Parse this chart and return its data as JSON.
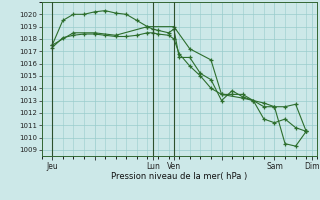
{
  "background_color": "#cce8e8",
  "grid_color": "#99cccc",
  "line_color": "#2d6e2d",
  "xlabel": "Pression niveau de la mer( hPa )",
  "ylim": [
    1008.5,
    1021.0
  ],
  "yticks": [
    1009,
    1010,
    1011,
    1012,
    1013,
    1014,
    1015,
    1016,
    1017,
    1018,
    1019,
    1020
  ],
  "xlim": [
    0,
    26
  ],
  "xtick_positions": [
    1,
    5,
    10.5,
    12.5,
    17,
    22,
    25.5
  ],
  "xtick_labels": [
    "Jeu",
    "",
    "Lun",
    "Ven",
    "",
    "Sam",
    "Dim"
  ],
  "vlines": [
    1,
    10.5,
    12.5
  ],
  "series1_x": [
    1,
    2,
    3,
    4,
    5,
    6,
    7,
    8,
    9,
    10,
    10.5,
    11,
    12,
    12.5,
    13,
    14,
    15,
    16,
    17,
    18,
    19,
    20,
    21,
    22,
    23,
    24,
    25
  ],
  "series1_y": [
    1017.5,
    1019.5,
    1020.0,
    1020.0,
    1020.2,
    1020.3,
    1020.1,
    1020.0,
    1019.5,
    1019.0,
    1018.8,
    1018.7,
    1018.5,
    1018.8,
    1016.5,
    1016.5,
    1015.2,
    1014.7,
    1013.0,
    1013.8,
    1013.3,
    1013.0,
    1011.5,
    1011.2,
    1011.5,
    1010.8,
    1010.5
  ],
  "series2_x": [
    1,
    2,
    3,
    4,
    5,
    6,
    7,
    8,
    9,
    10,
    10.5,
    11,
    12,
    12.5,
    13,
    14,
    15,
    16,
    17,
    18,
    19,
    20,
    21,
    22,
    23,
    24,
    25
  ],
  "series2_y": [
    1017.3,
    1018.1,
    1018.3,
    1018.4,
    1018.4,
    1018.3,
    1018.2,
    1018.2,
    1018.3,
    1018.5,
    1018.5,
    1018.4,
    1018.3,
    1018.0,
    1016.8,
    1015.8,
    1015.0,
    1014.0,
    1013.5,
    1013.5,
    1013.5,
    1013.0,
    1012.5,
    1012.5,
    1012.5,
    1012.7,
    1010.5
  ],
  "series3_x": [
    1,
    3,
    5,
    7,
    10,
    12.5,
    14,
    16,
    17,
    19,
    21,
    22,
    23,
    24,
    25
  ],
  "series3_y": [
    1017.5,
    1018.5,
    1018.5,
    1018.3,
    1019.0,
    1019.0,
    1017.2,
    1016.3,
    1013.5,
    1013.2,
    1012.8,
    1012.5,
    1009.5,
    1009.3,
    1010.5
  ]
}
